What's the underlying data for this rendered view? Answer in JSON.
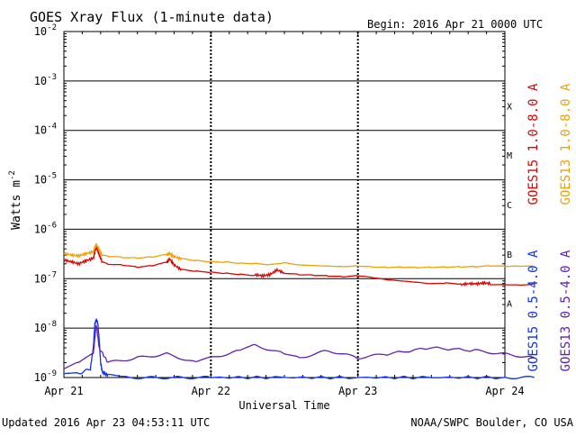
{
  "chart_data": {
    "type": "line",
    "title": "GOES Xray Flux (1-minute data)",
    "begin_label": "Begin:  2016 Apr 21 0000 UTC",
    "ylabel": "Watts m",
    "ylabel_sup": "-2",
    "xlabel": "Universal Time",
    "y_scale": "log",
    "ylim": [
      1e-09,
      0.01
    ],
    "y_ticks": [
      {
        "value": 0.01,
        "base": "10",
        "exp": "-2"
      },
      {
        "value": 0.001,
        "base": "10",
        "exp": "-3"
      },
      {
        "value": 0.0001,
        "base": "10",
        "exp": "-4"
      },
      {
        "value": 1e-05,
        "base": "10",
        "exp": "-5"
      },
      {
        "value": 1e-06,
        "base": "10",
        "exp": "-6"
      },
      {
        "value": 1e-07,
        "base": "10",
        "exp": "-7"
      },
      {
        "value": 1e-08,
        "base": "10",
        "exp": "-8"
      },
      {
        "value": 1e-09,
        "base": "10",
        "exp": "-9"
      }
    ],
    "x_ticks": [
      "Apr 21",
      "Apr 22",
      "Apr 23",
      "Apr 24"
    ],
    "xlim_days": [
      0,
      3
    ],
    "flare_classes": [
      {
        "label": "X",
        "value": 0.000316
      },
      {
        "label": "M",
        "value": 3.16e-05
      },
      {
        "label": "C",
        "value": 3.16e-06
      },
      {
        "label": "B",
        "value": 3.16e-07
      },
      {
        "label": "A",
        "value": 3.16e-08
      }
    ],
    "grid": true,
    "legend_position": "right",
    "series": [
      {
        "name": "GOES15 1.0-8.0 A",
        "color": "#e00000",
        "x": [
          0.0,
          0.05,
          0.1,
          0.15,
          0.2,
          0.22,
          0.24,
          0.26,
          0.3,
          0.4,
          0.5,
          0.6,
          0.7,
          0.72,
          0.75,
          0.8,
          0.9,
          1.0,
          1.1,
          1.2,
          1.3,
          1.35,
          1.4,
          1.45,
          1.5,
          1.6,
          1.7,
          1.8,
          1.9,
          2.0,
          2.1,
          2.2,
          2.3,
          2.4,
          2.5,
          2.6,
          2.7,
          2.75,
          2.8,
          2.85,
          2.9,
          3.0,
          3.1,
          3.2
        ],
        "y": [
          2.4e-07,
          2.2e-07,
          2e-07,
          2.3e-07,
          2.6e-07,
          4.5e-07,
          3e-07,
          2.2e-07,
          2e-07,
          1.9e-07,
          1.7e-07,
          1.8e-07,
          2.1e-07,
          2.5e-07,
          1.9e-07,
          1.5e-07,
          1.4e-07,
          1.35e-07,
          1.3e-07,
          1.25e-07,
          1.2e-07,
          1.15e-07,
          1.2e-07,
          1.5e-07,
          1.3e-07,
          1.2e-07,
          1.15e-07,
          1.1e-07,
          1.05e-07,
          1.1e-07,
          1e-07,
          9e-08,
          8.5e-08,
          8e-08,
          7.5e-08,
          7.8e-08,
          7.5e-08,
          8e-08,
          7.8e-08,
          8.2e-08,
          8e-08,
          8e-08,
          7.8e-08,
          8e-08
        ]
      },
      {
        "name": "GOES13 1.0-8.0 A",
        "color": "#f0a000",
        "x": [
          0.0,
          0.05,
          0.1,
          0.15,
          0.2,
          0.22,
          0.24,
          0.26,
          0.3,
          0.4,
          0.5,
          0.6,
          0.7,
          0.72,
          0.75,
          0.8,
          0.9,
          1.0,
          1.1,
          1.2,
          1.3,
          1.4,
          1.5,
          1.6,
          1.7,
          1.8,
          1.9,
          2.0,
          2.1,
          2.2,
          2.3,
          2.4,
          2.5,
          2.6,
          2.7,
          2.8,
          2.9,
          3.0,
          3.1,
          3.2
        ],
        "y": [
          3.2e-07,
          3e-07,
          2.9e-07,
          3.2e-07,
          3.5e-07,
          5e-07,
          3.8e-07,
          3e-07,
          2.9e-07,
          2.7e-07,
          2.6e-07,
          2.7e-07,
          3e-07,
          3.2e-07,
          2.8e-07,
          2.5e-07,
          2.3e-07,
          2.2e-07,
          2.2e-07,
          2.1e-07,
          2.1e-07,
          2e-07,
          2.2e-07,
          2e-07,
          1.95e-07,
          1.9e-07,
          1.85e-07,
          1.9e-07,
          1.8e-07,
          1.75e-07,
          1.75e-07,
          1.7e-07,
          1.7e-07,
          1.7e-07,
          1.7e-07,
          1.7e-07,
          1.75e-07,
          1.7e-07,
          1.7e-07,
          1.7e-07
        ]
      },
      {
        "name": "GOES15 0.5-4.0 A",
        "color": "#1030f0",
        "x": [
          0.0,
          0.1,
          0.18,
          0.2,
          0.21,
          0.22,
          0.23,
          0.24,
          0.25,
          0.26,
          0.3,
          0.4,
          0.6,
          0.8,
          1.0,
          1.5,
          2.0,
          2.5,
          3.0,
          3.2
        ],
        "y": [
          1.2e-09,
          1.2e-09,
          1.5e-09,
          4e-09,
          1.2e-08,
          1.5e-08,
          1.3e-08,
          6e-09,
          2e-09,
          1.3e-09,
          1.1e-09,
          1e-09,
          1e-09,
          1e-09,
          1e-09,
          1e-09,
          1e-09,
          1e-09,
          1e-09,
          1e-09
        ]
      },
      {
        "name": "GOES13 0.5-4.0 A",
        "color": "#6020b0",
        "x": [
          0.0,
          0.1,
          0.2,
          0.22,
          0.24,
          0.3,
          0.5,
          0.7,
          0.9,
          1.0,
          1.2,
          1.3,
          1.5,
          1.6,
          1.8,
          2.0,
          2.2,
          2.5,
          2.8,
          3.0,
          3.2
        ],
        "y": [
          1.5e-09,
          2e-09,
          3e-09,
          1.2e-08,
          4e-09,
          2e-09,
          2.5e-09,
          3e-09,
          2e-09,
          2.5e-09,
          3.5e-09,
          4.5e-09,
          3e-09,
          2.5e-09,
          3.5e-09,
          2.5e-09,
          3e-09,
          4e-09,
          3.5e-09,
          3e-09,
          2.5e-09
        ]
      }
    ]
  },
  "footer": {
    "updated": "Updated 2016 Apr 23 04:53:11 UTC",
    "credit": "NOAA/SWPC Boulder, CO USA"
  }
}
